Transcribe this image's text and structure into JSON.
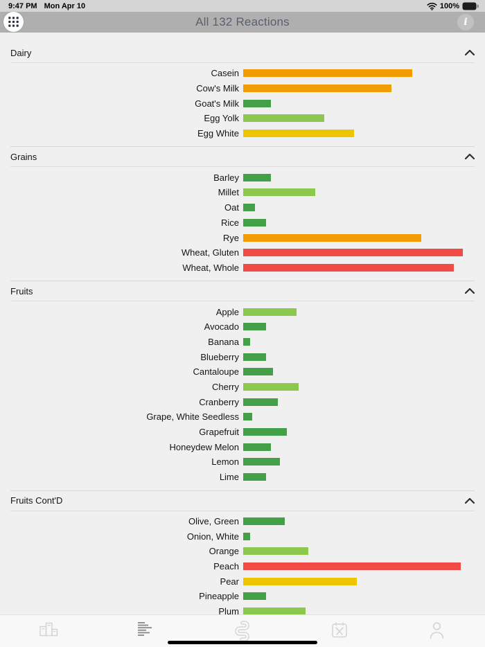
{
  "status_bar": {
    "time": "9:47 PM",
    "date": "Mon Apr 10",
    "battery": "100%"
  },
  "header": {
    "title": "All 132 Reactions",
    "info_glyph": "i"
  },
  "severity_colors": {
    "green": "#44A046",
    "lightgreen": "#8CC84E",
    "yellow": "#EEC502",
    "orange": "#F39C01",
    "red": "#F24B45"
  },
  "chart_data": [
    {
      "type": "bar",
      "orientation": "horizontal",
      "title": "Dairy",
      "xlim": [
        0,
        100
      ],
      "categories": [
        "Casein",
        "Cow's Milk",
        "Goat's Milk",
        "Egg Yolk",
        "Egg White"
      ],
      "values": [
        73,
        64,
        12,
        35,
        48
      ],
      "colors": [
        "orange",
        "orange",
        "green",
        "lightgreen",
        "yellow"
      ]
    },
    {
      "type": "bar",
      "orientation": "horizontal",
      "title": "Grains",
      "xlim": [
        0,
        100
      ],
      "categories": [
        "Barley",
        "Millet",
        "Oat",
        "Rice",
        "Rye",
        "Wheat, Gluten",
        "Wheat, Whole"
      ],
      "values": [
        12,
        31,
        5,
        10,
        77,
        95,
        91
      ],
      "colors": [
        "green",
        "lightgreen",
        "green",
        "green",
        "orange",
        "red",
        "red"
      ]
    },
    {
      "type": "bar",
      "orientation": "horizontal",
      "title": "Fruits",
      "xlim": [
        0,
        100
      ],
      "categories": [
        "Apple",
        "Avocado",
        "Banana",
        "Blueberry",
        "Cantaloupe",
        "Cherry",
        "Cranberry",
        "Grape, White Seedless",
        "Grapefruit",
        "Honeydew Melon",
        "Lemon",
        "Lime"
      ],
      "values": [
        23,
        10,
        3,
        10,
        13,
        24,
        15,
        4,
        19,
        12,
        16,
        10
      ],
      "colors": [
        "lightgreen",
        "green",
        "green",
        "green",
        "green",
        "lightgreen",
        "green",
        "green",
        "green",
        "green",
        "green",
        "green"
      ]
    },
    {
      "type": "bar",
      "orientation": "horizontal",
      "title": "Fruits Cont'D",
      "xlim": [
        0,
        100
      ],
      "categories": [
        "Olive, Green",
        "Onion, White",
        "Orange",
        "Peach",
        "Pear",
        "Pineapple",
        "Plum"
      ],
      "values": [
        18,
        3,
        28,
        94,
        49,
        10,
        27
      ],
      "colors": [
        "green",
        "green",
        "lightgreen",
        "red",
        "yellow",
        "green",
        "lightgreen"
      ]
    }
  ],
  "tab_bar": {
    "items": [
      {
        "name": "results",
        "icon": "podium-icon",
        "active": false
      },
      {
        "name": "reactions",
        "icon": "bar-lines-icon",
        "active": true
      },
      {
        "name": "gut",
        "icon": "intestine-icon",
        "active": false
      },
      {
        "name": "meal-plan",
        "icon": "meal-calendar-icon",
        "active": false
      },
      {
        "name": "profile",
        "icon": "profile-icon",
        "active": false
      }
    ]
  }
}
